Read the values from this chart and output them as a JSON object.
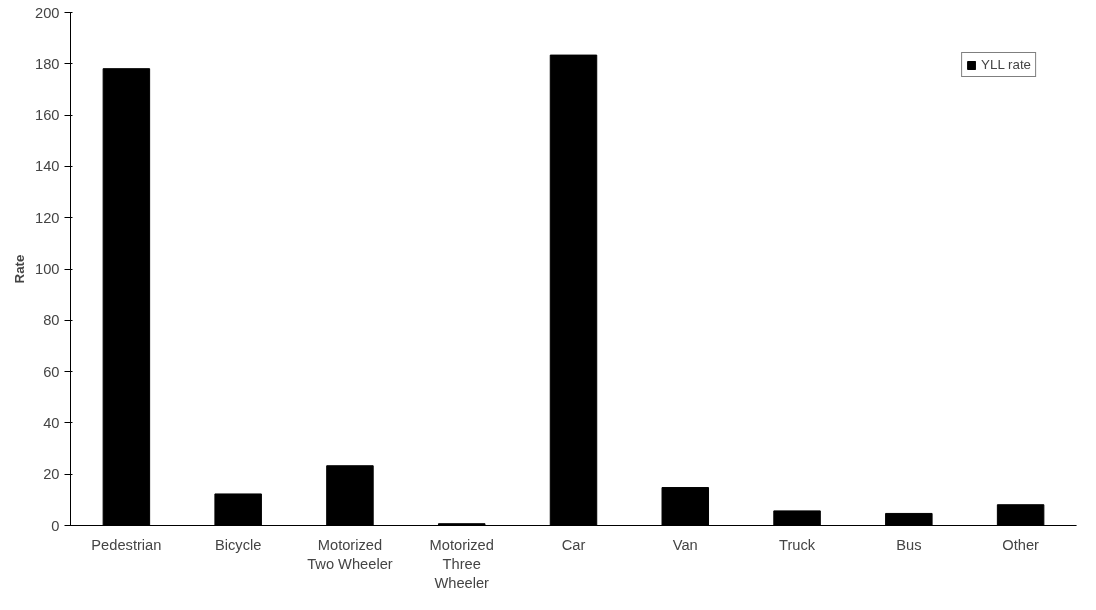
{
  "chart_data": {
    "type": "bar",
    "ylabel": "Rate",
    "categories": [
      "Pedestrian",
      "Bicycle",
      "Motorized\nTwo Wheeler",
      "Motorized\nThree\nWheeler",
      "Car",
      "Van",
      "Truck",
      "Bus",
      "Other"
    ],
    "series": [
      {
        "name": "YLL rate",
        "color": "#000000",
        "values": [
          178.1,
          12.3,
          23.3,
          0.7,
          183.4,
          14.8,
          5.7,
          4.7,
          8.1
        ]
      }
    ],
    "ylim": [
      0,
      200
    ],
    "yticks": [
      0,
      20,
      40,
      60,
      80,
      100,
      120,
      140,
      160,
      180,
      200
    ],
    "grid": false,
    "legend": "top right"
  }
}
